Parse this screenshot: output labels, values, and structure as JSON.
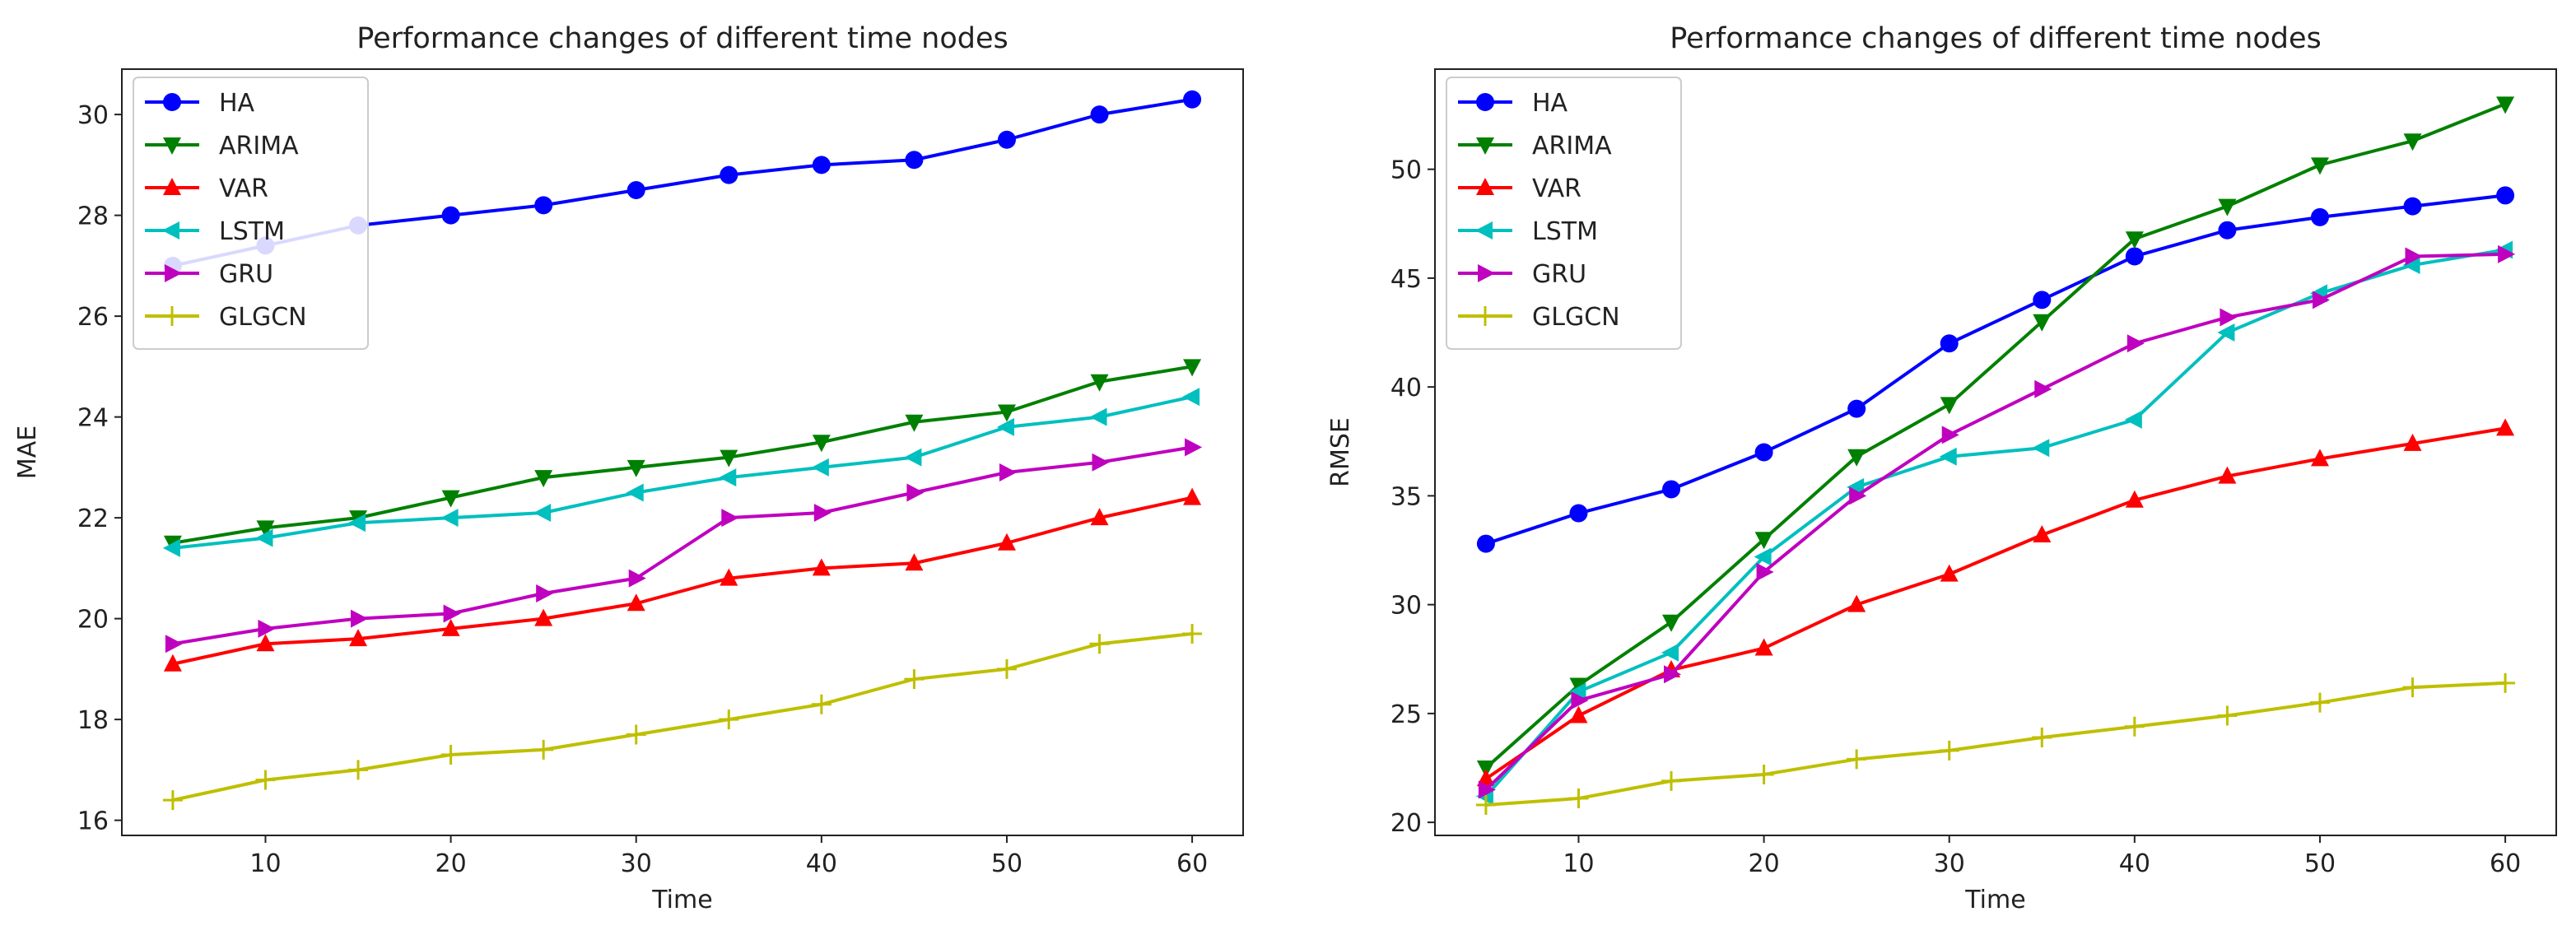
{
  "chart_data": [
    {
      "type": "line",
      "title": "Performance changes of different time nodes",
      "xlabel": "Time",
      "ylabel": "MAE",
      "x": [
        5,
        10,
        15,
        20,
        25,
        30,
        35,
        40,
        45,
        50,
        55,
        60
      ],
      "xlim": [
        2.25,
        62.75
      ],
      "ylim": [
        15.7,
        30.9
      ],
      "xticks": [
        "10",
        "20",
        "30",
        "40",
        "50",
        "60"
      ],
      "yticks": [
        "16",
        "18",
        "20",
        "22",
        "24",
        "26",
        "28",
        "30"
      ],
      "grid": false,
      "legend": "top-left",
      "series": [
        {
          "name": "HA",
          "color": "#0000ff",
          "marker": "circle",
          "values": [
            27.0,
            27.4,
            27.8,
            28.0,
            28.2,
            28.5,
            28.8,
            29.0,
            29.1,
            29.5,
            30.0,
            30.3
          ]
        },
        {
          "name": "ARIMA",
          "color": "#008000",
          "marker": "triangle-down",
          "values": [
            21.5,
            21.8,
            22.0,
            22.4,
            22.8,
            23.0,
            23.2,
            23.5,
            23.9,
            24.1,
            24.7,
            25.0
          ]
        },
        {
          "name": "VAR",
          "color": "#ff0000",
          "marker": "triangle-up",
          "values": [
            19.1,
            19.5,
            19.6,
            19.8,
            20.0,
            20.3,
            20.8,
            21.0,
            21.1,
            21.5,
            22.0,
            22.4
          ]
        },
        {
          "name": "LSTM",
          "color": "#00bfbf",
          "marker": "triangle-left",
          "values": [
            21.4,
            21.6,
            21.9,
            22.0,
            22.1,
            22.5,
            22.8,
            23.0,
            23.2,
            23.8,
            24.0,
            24.4
          ]
        },
        {
          "name": "GRU",
          "color": "#bf00bf",
          "marker": "triangle-right",
          "values": [
            19.5,
            19.8,
            20.0,
            20.1,
            20.5,
            20.8,
            22.0,
            22.1,
            22.5,
            22.9,
            23.1,
            23.4
          ]
        },
        {
          "name": "GLGCN",
          "color": "#bfbf00",
          "marker": "plus",
          "values": [
            16.4,
            16.8,
            17.0,
            17.3,
            17.4,
            17.7,
            18.0,
            18.3,
            18.8,
            19.0,
            19.5,
            19.7
          ]
        }
      ]
    },
    {
      "type": "line",
      "title": "Performance changes of different time nodes",
      "xlabel": "Time",
      "ylabel": "RMSE",
      "x": [
        5,
        10,
        15,
        20,
        25,
        30,
        35,
        40,
        45,
        50,
        55,
        60
      ],
      "xlim": [
        2.25,
        62.75
      ],
      "ylim": [
        19.4,
        54.6
      ],
      "xticks": [
        "10",
        "20",
        "30",
        "40",
        "50",
        "60"
      ],
      "yticks": [
        "20",
        "25",
        "30",
        "35",
        "40",
        "45",
        "50"
      ],
      "grid": false,
      "legend": "top-left",
      "series": [
        {
          "name": "HA",
          "color": "#0000ff",
          "marker": "circle",
          "values": [
            32.8,
            34.2,
            35.3,
            37.0,
            39.0,
            42.0,
            44.0,
            46.0,
            47.2,
            47.8,
            48.3,
            48.8
          ]
        },
        {
          "name": "ARIMA",
          "color": "#008000",
          "marker": "triangle-down",
          "values": [
            22.5,
            26.3,
            29.2,
            33.0,
            36.8,
            39.2,
            43.0,
            46.8,
            48.3,
            50.2,
            51.3,
            53.0
          ]
        },
        {
          "name": "VAR",
          "color": "#ff0000",
          "marker": "triangle-up",
          "values": [
            22.0,
            24.9,
            27.0,
            28.0,
            30.0,
            31.4,
            33.2,
            34.8,
            35.9,
            36.7,
            37.4,
            38.1
          ]
        },
        {
          "name": "LSTM",
          "color": "#00bfbf",
          "marker": "triangle-left",
          "values": [
            21.2,
            26.0,
            27.8,
            32.2,
            35.4,
            36.8,
            37.2,
            38.5,
            42.5,
            44.3,
            45.6,
            46.3
          ]
        },
        {
          "name": "GRU",
          "color": "#bf00bf",
          "marker": "triangle-right",
          "values": [
            21.5,
            25.6,
            26.8,
            31.5,
            35.0,
            37.8,
            39.9,
            42.0,
            43.2,
            44.0,
            46.0,
            46.1
          ]
        },
        {
          "name": "GLGCN",
          "color": "#bfbf00",
          "marker": "plus",
          "values": [
            20.8,
            21.1,
            21.9,
            22.2,
            22.9,
            23.3,
            23.9,
            24.4,
            24.9,
            25.5,
            26.2,
            26.4
          ]
        }
      ]
    }
  ]
}
